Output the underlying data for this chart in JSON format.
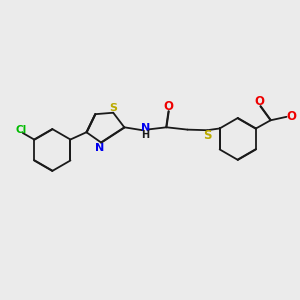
{
  "background_color": "#ebebeb",
  "bond_color": "#1a1a1a",
  "atom_colors": {
    "Cl": "#00bb00",
    "S": "#bbaa00",
    "N": "#0000ee",
    "O": "#ee0000",
    "H": "#1a1a1a",
    "C": "#1a1a1a"
  },
  "figsize": [
    3.0,
    3.0
  ],
  "dpi": 100
}
